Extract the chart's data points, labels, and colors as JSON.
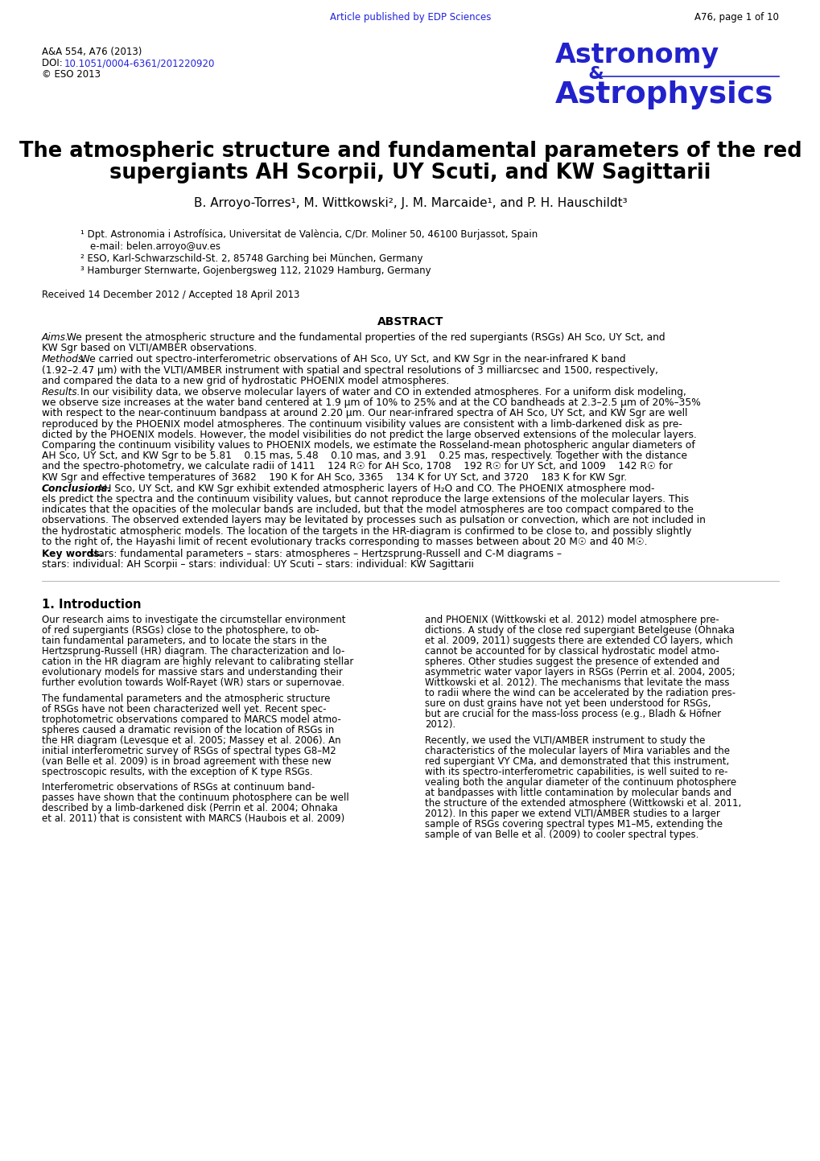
{
  "bg_color": "#ffffff",
  "header_line1": "A&A 554, A76 (2013)",
  "header_line2_prefix": "DOI: ",
  "header_line2_link": "10.1051/0004-6361/201220920",
  "header_line3": "© ESO 2013",
  "journal_line1": "Astronomy",
  "journal_amp": "   &",
  "journal_line2": "Astrophysics",
  "title_line1": "The atmospheric structure and fundamental parameters of the red",
  "title_line2": "supergiants AH Scorpii, UY Scuti, and KW Sagittarii",
  "authors_text": "B. Arroyo-Torres",
  "authors_sup1": "1",
  "authors_mid": ", M. Wittkowski",
  "authors_sup2": "2",
  "authors_mid2": ", J. M. Marcaide",
  "authors_sup3": "1",
  "authors_mid3": ", and P. H. Hauschildt",
  "authors_sup4": "3",
  "affil1_sup": "1",
  "affil1_text": " Dpt. Astronomia i Astrofísica, Universitat de València, C/Dr. Moliner 50, 46100 Burjassot, Spain",
  "affil1b": "   e-mail: belen.arroyo@uv.es",
  "affil2_sup": "2",
  "affil2_text": " ESO, Karl-Schwarzschild-St. 2, 85748 Garching bei München, Germany",
  "affil3_sup": "3",
  "affil3_text": " Hamburger Sternwarte, Gojenbergsweg 112, 21029 Hamburg, Germany",
  "received": "Received 14 December 2012 / Accepted 18 April 2013",
  "abstract_title": "ABSTRACT",
  "aims_label": "Aims.",
  "aims_body": " We present the atmospheric structure and the fundamental properties of the red supergiants (RSGs) AH Sco, UY Sct, and\nKW Sgr based on VLTI/AMBER observations.",
  "methods_label": "Methods.",
  "methods_body": " We carried out spectro-interferometric observations of AH Sco, UY Sct, and KW Sgr in the near-infrared K band\n(1.92–2.47 μm) with the VLTI/AMBER instrument with spatial and spectral resolutions of 3 milliarcsec and 1500, respectively,\nand compared the data to a new grid of hydrostatic PHOENIX model atmospheres.",
  "results_label": "Results.",
  "results_body": " In our visibility data, we observe molecular layers of water and CO in extended atmospheres. For a uniform disk modeling,\nwe observe size increases at the water band centered at 1.9 μm of 10% to 25% and at the CO bandheads at 2.3–2.5 μm of 20%–35%\nwith respect to the near-continuum bandpass at around 2.20 μm. Our near-infrared spectra of AH Sco, UY Sct, and KW Sgr are well\nreproduced by the PHOENIX model atmospheres. The continuum visibility values are consistent with a limb-darkened disk as pre-\ndicted by the PHOENIX models. However, the model visibilities do not predict the large observed extensions of the molecular layers.\nComparing the continuum visibility values to PHOENIX models, we estimate the Rosseland-mean photospheric angular diameters of\nAH Sco, UY Sct, and KW Sgr to be 5.81    0.15 mas, 5.48    0.10 mas, and 3.91    0.25 mas, respectively. Together with the distance\nand the spectro-photometry, we calculate radii of 1411    124 R☉ for AH Sco, 1708    192 R☉ for UY Sct, and 1009    142 R☉ for\nKW Sgr and effective temperatures of 3682    190 K for AH Sco, 3365    134 K for UY Sct, and 3720    183 K for KW Sgr.",
  "concl_label": "Conclusions.",
  "concl_body": " AH Sco, UY Sct, and KW Sgr exhibit extended atmospheric layers of H₂O and CO. The PHOENIX atmosphere mod-\nels predict the spectra and the continuum visibility values, but cannot reproduce the large extensions of the molecular layers. This\nindicates that the opacities of the molecular bands are included, but that the model atmospheres are too compact compared to the\nobservations. The observed extended layers may be levitated by processes such as pulsation or convection, which are not included in\nthe hydrostatic atmospheric models. The location of the targets in the HR-diagram is confirmed to be close to, and possibly slightly\nto the right of, the Hayashi limit of recent evolutionary tracks corresponding to masses between about 20 M☉ and 40 M☉.",
  "kw_label": "Key words.",
  "kw_body": " stars: fundamental parameters – stars: atmospheres – Hertzsprung-Russell and C-M diagrams –\nstars: individual: AH Scorpii – stars: individual: UY Scuti – stars: individual: KW Sagittarii",
  "intro_title": "1. Introduction",
  "intro_col1_lines": [
    "Our research aims to investigate the circumstellar environment",
    "of red supergiants (RSGs) close to the photosphere, to ob-",
    "tain fundamental parameters, and to locate the stars in the",
    "Hertzsprung-Russell (HR) diagram. The characterization and lo-",
    "cation in the HR diagram are highly relevant to calibrating stellar",
    "evolutionary models for massive stars and understanding their",
    "further evolution towards Wolf-Rayet (WR) stars or supernovae.",
    "",
    "The fundamental parameters and the atmospheric structure",
    "of RSGs have not been characterized well yet. Recent spec-",
    "trophotometric observations compared to MARCS model atmo-",
    "spheres caused a dramatic revision of the location of RSGs in",
    "the HR diagram (Levesque et al. 2005; Massey et al. 2006). An",
    "initial interferometric survey of RSGs of spectral types G8–M2",
    "(van Belle et al. 2009) is in broad agreement with these new",
    "spectroscopic results, with the exception of K type RSGs.",
    "",
    "Interferometric observations of RSGs at continuum band-",
    "passes have shown that the continuum photosphere can be well",
    "described by a limb-darkened disk (Perrin et al. 2004; Ohnaka",
    "et al. 2011) that is consistent with MARCS (Haubois et al. 2009)"
  ],
  "intro_col2_lines": [
    "and PHOENIX (Wittkowski et al. 2012) model atmosphere pre-",
    "dictions. A study of the close red supergiant Betelgeuse (Ohnaka",
    "et al. 2009, 2011) suggests there are extended CO layers, which",
    "cannot be accounted for by classical hydrostatic model atmo-",
    "spheres. Other studies suggest the presence of extended and",
    "asymmetric water vapor layers in RSGs (Perrin et al. 2004, 2005;",
    "Wittkowski et al. 2012). The mechanisms that levitate the mass",
    "to radii where the wind can be accelerated by the radiation pres-",
    "sure on dust grains have not yet been understood for RSGs,",
    "but are crucial for the mass-loss process (e.g., Bladh & Höfner",
    "2012).",
    "",
    "Recently, we used the VLTI/AMBER instrument to study the",
    "characteristics of the molecular layers of Mira variables and the",
    "red supergiant VY CMa, and demonstrated that this instrument,",
    "with its spectro-interferometric capabilities, is well suited to re-",
    "vealing both the angular diameter of the continuum photosphere",
    "at bandpasses with little contamination by molecular bands and",
    "the structure of the extended atmosphere (Wittkowski et al. 2011,",
    "2012). In this paper we extend VLTI/AMBER studies to a larger",
    "sample of RSGs covering spectral types M1–M5, extending the",
    "sample of van Belle et al. (2009) to cooler spectral types."
  ],
  "footer_link": "Article published by EDP Sciences",
  "footer_right": "A76, page 1 of 10",
  "blue": "#2222cc",
  "link_blue": "#2222dd",
  "black": "#000000",
  "gray": "#555555"
}
